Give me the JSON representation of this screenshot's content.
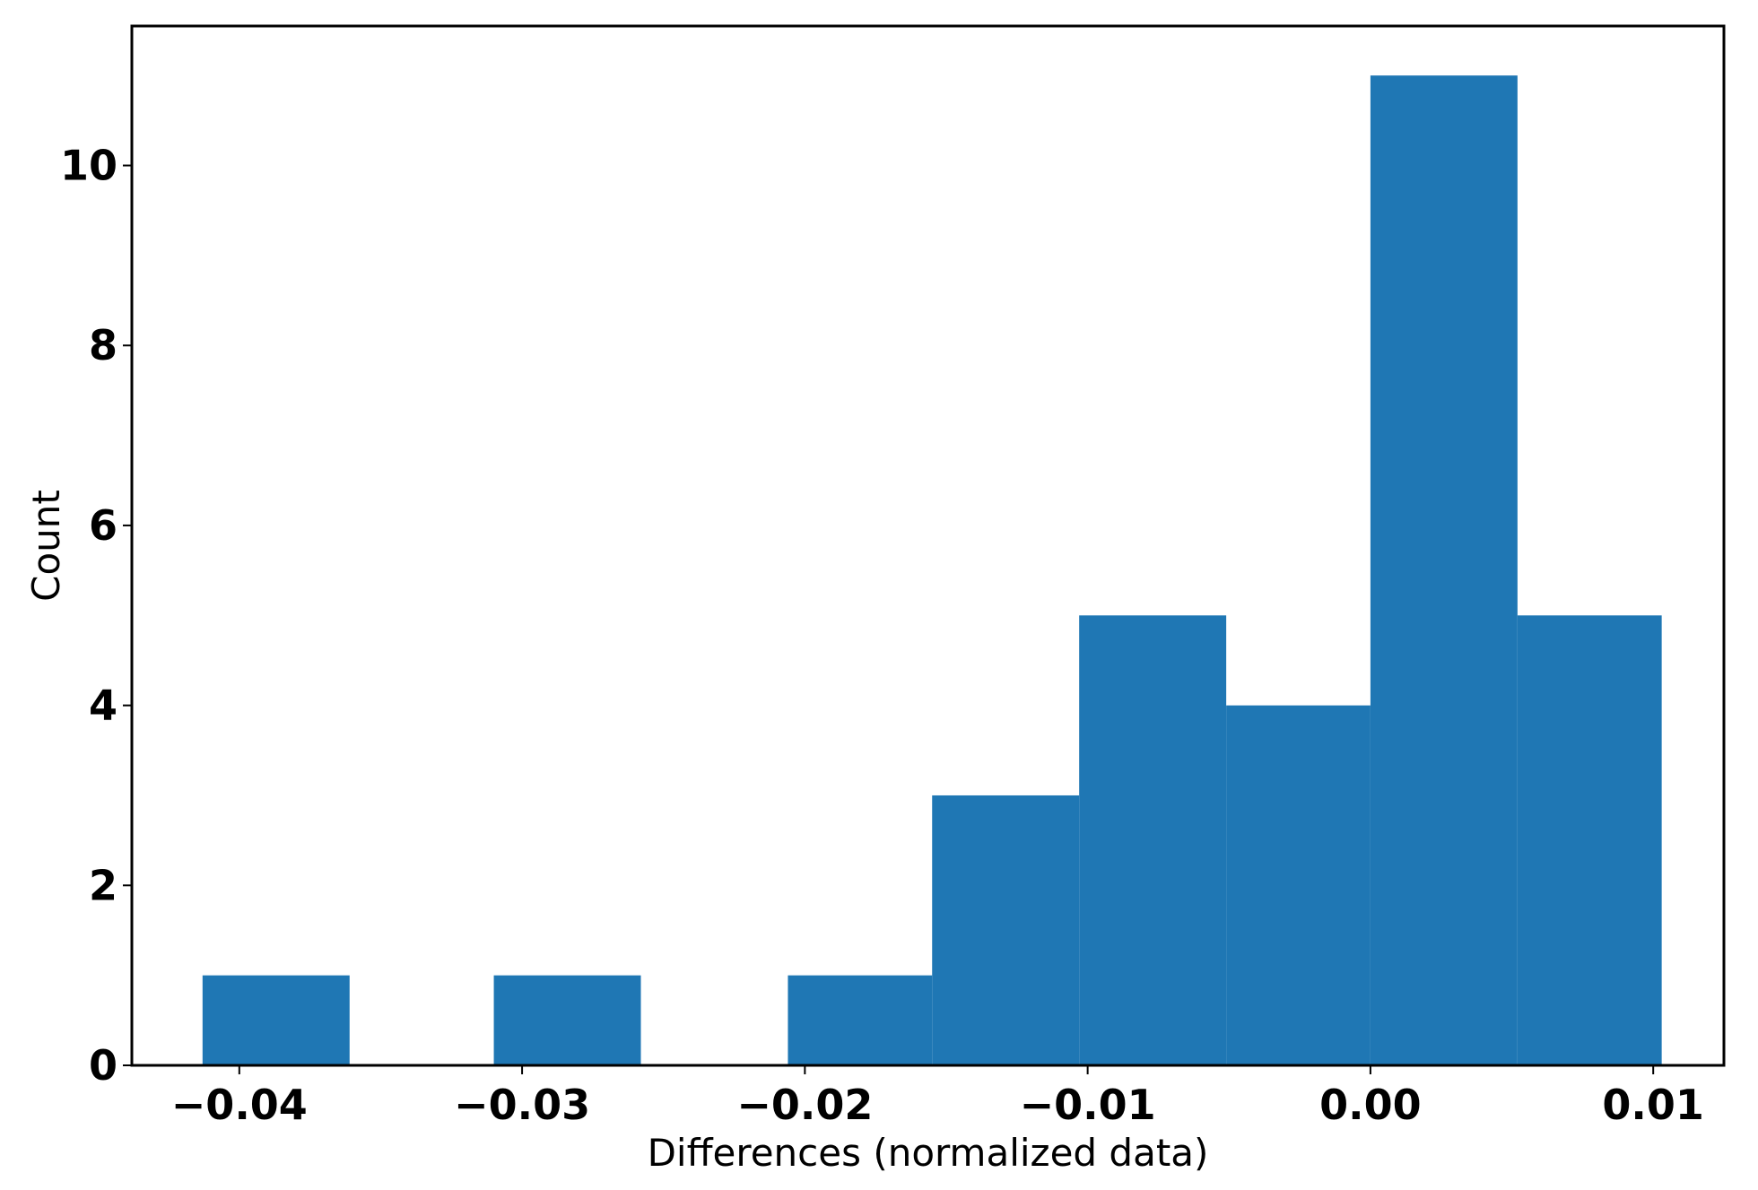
{
  "chart_data": {
    "type": "bar",
    "bins": [
      {
        "left": -0.0413,
        "right": -0.0361,
        "count": 1
      },
      {
        "left": -0.0361,
        "right": -0.031,
        "count": 0
      },
      {
        "left": -0.031,
        "right": -0.0258,
        "count": 1
      },
      {
        "left": -0.0258,
        "right": -0.0206,
        "count": 0
      },
      {
        "left": -0.0206,
        "right": -0.0155,
        "count": 1
      },
      {
        "left": -0.0155,
        "right": -0.0103,
        "count": 3
      },
      {
        "left": -0.0103,
        "right": -0.0051,
        "count": 5
      },
      {
        "left": -0.0051,
        "right": 0.0,
        "count": 4
      },
      {
        "left": 0.0,
        "right": 0.0052,
        "count": 11
      },
      {
        "left": 0.0052,
        "right": 0.0103,
        "count": 5
      }
    ],
    "x_ticks": [
      {
        "value": -0.04,
        "label": "−0.04"
      },
      {
        "value": -0.03,
        "label": "−0.03"
      },
      {
        "value": -0.02,
        "label": "−0.02"
      },
      {
        "value": -0.01,
        "label": "−0.01"
      },
      {
        "value": 0.0,
        "label": "0.00"
      },
      {
        "value": 0.01,
        "label": "0.01"
      }
    ],
    "y_ticks": [
      {
        "value": 0,
        "label": "0"
      },
      {
        "value": 2,
        "label": "2"
      },
      {
        "value": 4,
        "label": "4"
      },
      {
        "value": 6,
        "label": "6"
      },
      {
        "value": 8,
        "label": "8"
      },
      {
        "value": 10,
        "label": "10"
      }
    ],
    "xlabel": "Differences (normalized data)",
    "ylabel": "Count",
    "xlim": [
      -0.0438,
      0.0125
    ],
    "ylim": [
      0,
      11.55
    ],
    "grid": false,
    "bar_color": "#1f77b4"
  }
}
